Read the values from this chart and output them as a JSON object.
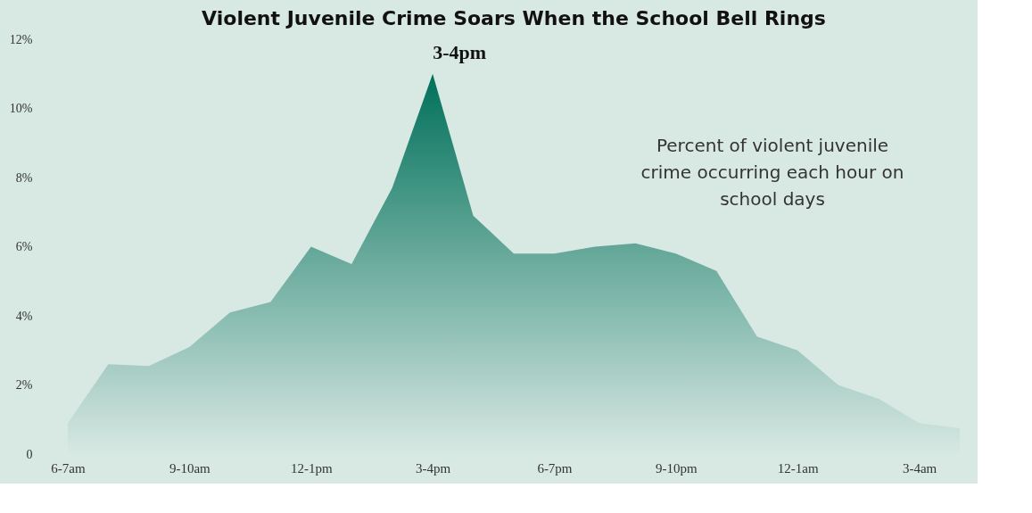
{
  "chart_data": {
    "type": "area",
    "title": "Violent Juvenile Crime Soars When the School Bell Rings",
    "categories": [
      "6-7am",
      null,
      null,
      "9-10am",
      null,
      null,
      "12-1pm",
      null,
      null,
      "3-4pm",
      null,
      null,
      "6-7pm",
      null,
      null,
      "9-10pm",
      null,
      null,
      "12-1am",
      null,
      null,
      "3-4am",
      null
    ],
    "values": [
      0.9,
      2.6,
      2.55,
      3.1,
      4.1,
      4.4,
      6.0,
      5.5,
      7.7,
      11.0,
      6.9,
      5.8,
      5.8,
      6.0,
      6.1,
      5.8,
      5.3,
      3.4,
      3.0,
      2.0,
      1.6,
      0.9,
      0.75
    ],
    "color": "#00705a",
    "ylim": [
      0,
      12
    ],
    "yticks": [
      0,
      {
        "value": 2,
        "label": "2%"
      },
      {
        "value": 4,
        "label": "4%"
      },
      {
        "value": 6,
        "label": "6%"
      },
      {
        "value": 8,
        "label": "8%"
      },
      {
        "value": 10,
        "label": "10%"
      },
      {
        "value": 12,
        "label": "12%"
      }
    ],
    "grid": false,
    "annotations": [
      {
        "text": "3-4pm",
        "x": "3-4pm",
        "y": 11.0
      },
      "Percent of violent juvenile crime occurring each hour on school days"
    ]
  }
}
